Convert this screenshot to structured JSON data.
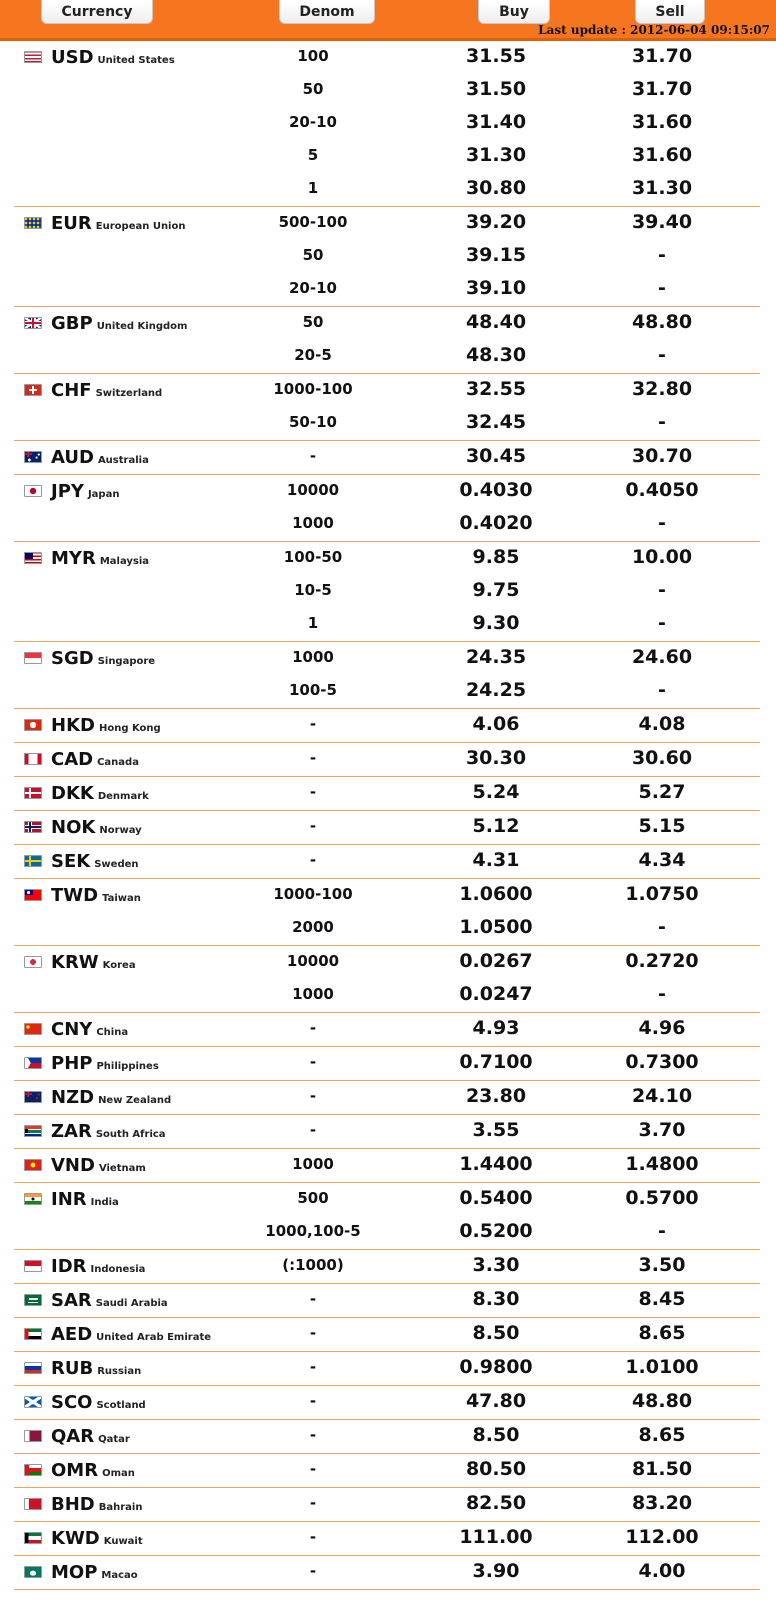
{
  "header": {
    "columns": {
      "currency": "Currency",
      "denom": "Denom",
      "buy": "Buy",
      "sell": "Sell"
    },
    "last_update": "Last update : 2012-06-04 09:15:07"
  },
  "currencies": [
    {
      "code": "USD",
      "country": "United States",
      "flag": "flag-us-icon",
      "rows": [
        {
          "denom": "100",
          "buy": "31.55",
          "sell": "31.70"
        },
        {
          "denom": "50",
          "buy": "31.50",
          "sell": "31.70"
        },
        {
          "denom": "20-10",
          "buy": "31.40",
          "sell": "31.60"
        },
        {
          "denom": "5",
          "buy": "31.30",
          "sell": "31.60"
        },
        {
          "denom": "1",
          "buy": "30.80",
          "sell": "31.30"
        }
      ]
    },
    {
      "code": "EUR",
      "country": "European Union",
      "flag": "flag-eu-icon",
      "rows": [
        {
          "denom": "500-100",
          "buy": "39.20",
          "sell": "39.40"
        },
        {
          "denom": "50",
          "buy": "39.15",
          "sell": "-"
        },
        {
          "denom": "20-10",
          "buy": "39.10",
          "sell": "-"
        }
      ]
    },
    {
      "code": "GBP",
      "country": "United Kingdom",
      "flag": "flag-gb-icon",
      "rows": [
        {
          "denom": "50",
          "buy": "48.40",
          "sell": "48.80"
        },
        {
          "denom": "20-5",
          "buy": "48.30",
          "sell": "-"
        }
      ]
    },
    {
      "code": "CHF",
      "country": "Switzerland",
      "flag": "flag-ch-icon",
      "rows": [
        {
          "denom": "1000-100",
          "buy": "32.55",
          "sell": "32.80"
        },
        {
          "denom": "50-10",
          "buy": "32.45",
          "sell": "-"
        }
      ]
    },
    {
      "code": "AUD",
      "country": "Australia",
      "flag": "flag-au-icon",
      "rows": [
        {
          "denom": "-",
          "buy": "30.45",
          "sell": "30.70"
        }
      ]
    },
    {
      "code": "JPY",
      "country": "Japan",
      "flag": "flag-jp-icon",
      "rows": [
        {
          "denom": "10000",
          "buy": "0.4030",
          "sell": "0.4050"
        },
        {
          "denom": "1000",
          "buy": "0.4020",
          "sell": "-"
        }
      ]
    },
    {
      "code": "MYR",
      "country": "Malaysia",
      "flag": "flag-my-icon",
      "rows": [
        {
          "denom": "100-50",
          "buy": "9.85",
          "sell": "10.00"
        },
        {
          "denom": "10-5",
          "buy": "9.75",
          "sell": "-"
        },
        {
          "denom": "1",
          "buy": "9.30",
          "sell": "-"
        }
      ]
    },
    {
      "code": "SGD",
      "country": "Singapore",
      "flag": "flag-sg-icon",
      "rows": [
        {
          "denom": "1000",
          "buy": "24.35",
          "sell": "24.60"
        },
        {
          "denom": "100-5",
          "buy": "24.25",
          "sell": "-"
        }
      ]
    },
    {
      "code": "HKD",
      "country": "Hong Kong",
      "flag": "flag-hk-icon",
      "rows": [
        {
          "denom": "-",
          "buy": "4.06",
          "sell": "4.08"
        }
      ]
    },
    {
      "code": "CAD",
      "country": "Canada",
      "flag": "flag-ca-icon",
      "rows": [
        {
          "denom": "-",
          "buy": "30.30",
          "sell": "30.60"
        }
      ]
    },
    {
      "code": "DKK",
      "country": "Denmark",
      "flag": "flag-dk-icon",
      "rows": [
        {
          "denom": "-",
          "buy": "5.24",
          "sell": "5.27"
        }
      ]
    },
    {
      "code": "NOK",
      "country": "Norway",
      "flag": "flag-no-icon",
      "rows": [
        {
          "denom": "-",
          "buy": "5.12",
          "sell": "5.15"
        }
      ]
    },
    {
      "code": "SEK",
      "country": "Sweden",
      "flag": "flag-se-icon",
      "rows": [
        {
          "denom": "-",
          "buy": "4.31",
          "sell": "4.34"
        }
      ]
    },
    {
      "code": "TWD",
      "country": "Taiwan",
      "flag": "flag-tw-icon",
      "rows": [
        {
          "denom": "1000-100",
          "buy": "1.0600",
          "sell": "1.0750"
        },
        {
          "denom": "2000",
          "buy": "1.0500",
          "sell": "-"
        }
      ]
    },
    {
      "code": "KRW",
      "country": "Korea",
      "flag": "flag-kr-icon",
      "rows": [
        {
          "denom": "10000",
          "buy": "0.0267",
          "sell": "0.2720"
        },
        {
          "denom": "1000",
          "buy": "0.0247",
          "sell": "-"
        }
      ]
    },
    {
      "code": "CNY",
      "country": "China",
      "flag": "flag-cn-icon",
      "rows": [
        {
          "denom": "-",
          "buy": "4.93",
          "sell": "4.96"
        }
      ]
    },
    {
      "code": "PHP",
      "country": "Philippines",
      "flag": "flag-ph-icon",
      "rows": [
        {
          "denom": "-",
          "buy": "0.7100",
          "sell": "0.7300"
        }
      ]
    },
    {
      "code": "NZD",
      "country": "New Zealand",
      "flag": "flag-nz-icon",
      "rows": [
        {
          "denom": "-",
          "buy": "23.80",
          "sell": "24.10"
        }
      ]
    },
    {
      "code": "ZAR",
      "country": "South Africa",
      "flag": "flag-za-icon",
      "rows": [
        {
          "denom": "-",
          "buy": "3.55",
          "sell": "3.70"
        }
      ]
    },
    {
      "code": "VND",
      "country": "Vietnam",
      "flag": "flag-vn-icon",
      "rows": [
        {
          "denom": "1000",
          "buy": "1.4400",
          "sell": "1.4800"
        }
      ]
    },
    {
      "code": "INR",
      "country": "India",
      "flag": "flag-in-icon",
      "rows": [
        {
          "denom": "500",
          "buy": "0.5400",
          "sell": "0.5700"
        },
        {
          "denom": "1000,100-5",
          "buy": "0.5200",
          "sell": "-"
        }
      ]
    },
    {
      "code": "IDR",
      "country": "Indonesia",
      "flag": "flag-id-icon",
      "rows": [
        {
          "denom": "(:1000)",
          "buy": "3.30",
          "sell": "3.50"
        }
      ]
    },
    {
      "code": "SAR",
      "country": "Saudi Arabia",
      "flag": "flag-sa-icon",
      "rows": [
        {
          "denom": "-",
          "buy": "8.30",
          "sell": "8.45"
        }
      ]
    },
    {
      "code": "AED",
      "country": "United Arab Emirate",
      "flag": "flag-ae-icon",
      "rows": [
        {
          "denom": "-",
          "buy": "8.50",
          "sell": "8.65"
        }
      ]
    },
    {
      "code": "RUB",
      "country": "Russian",
      "flag": "flag-ru-icon",
      "rows": [
        {
          "denom": "-",
          "buy": "0.9800",
          "sell": "1.0100"
        }
      ]
    },
    {
      "code": "SCO",
      "country": "Scotland",
      "flag": "flag-sco-icon",
      "rows": [
        {
          "denom": "-",
          "buy": "47.80",
          "sell": "48.80"
        }
      ]
    },
    {
      "code": "QAR",
      "country": "Qatar",
      "flag": "flag-qa-icon",
      "rows": [
        {
          "denom": "-",
          "buy": "8.50",
          "sell": "8.65"
        }
      ]
    },
    {
      "code": "OMR",
      "country": "Oman",
      "flag": "flag-om-icon",
      "rows": [
        {
          "denom": "-",
          "buy": "80.50",
          "sell": "81.50"
        }
      ]
    },
    {
      "code": "BHD",
      "country": "Bahrain",
      "flag": "flag-bh-icon",
      "rows": [
        {
          "denom": "-",
          "buy": "82.50",
          "sell": "83.20"
        }
      ]
    },
    {
      "code": "KWD",
      "country": "Kuwait",
      "flag": "flag-kw-icon",
      "rows": [
        {
          "denom": "-",
          "buy": "111.00",
          "sell": "112.00"
        }
      ]
    },
    {
      "code": "MOP",
      "country": "Macao",
      "flag": "flag-mo-icon",
      "rows": [
        {
          "denom": "-",
          "buy": "3.90",
          "sell": "4.00"
        }
      ]
    }
  ]
}
